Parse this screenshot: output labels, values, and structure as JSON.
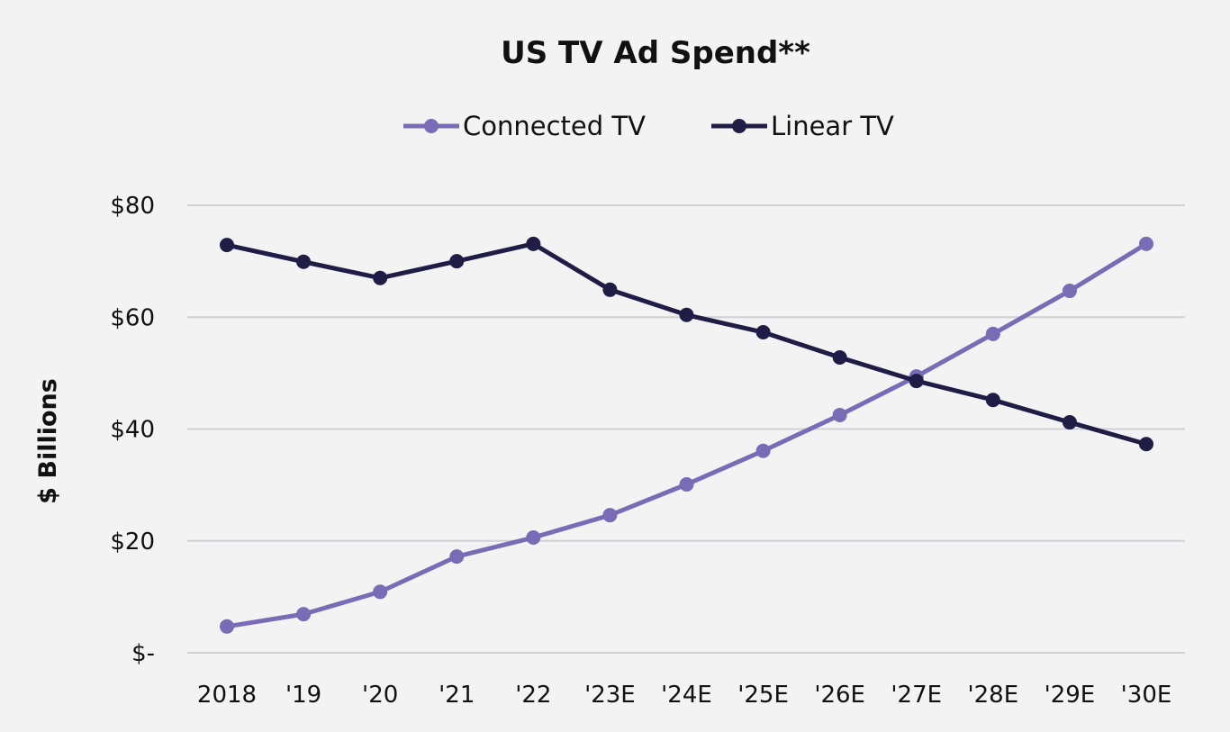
{
  "chart_data": {
    "type": "line",
    "title": "US TV Ad Spend**",
    "xlabel": "",
    "ylabel": "$ Billions",
    "categories": [
      "2018",
      "'19",
      "'20",
      "'21",
      "'22",
      "'23E",
      "'24E",
      "'25E",
      "'26E",
      "'27E",
      "'28E",
      "'29E",
      "'30E"
    ],
    "ylim": [
      0,
      80
    ],
    "yticks": [
      0,
      20,
      40,
      60,
      80
    ],
    "ytick_labels": [
      "$-",
      "$20",
      "$40",
      "$60",
      "$80"
    ],
    "grid": true,
    "legend_position": "top-center",
    "series": [
      {
        "name": "Connected TV",
        "color": "#7a6bb6",
        "values": [
          4.7,
          6.9,
          10.9,
          17.2,
          20.6,
          24.6,
          30.1,
          36.1,
          42.5,
          49.4,
          57.0,
          64.7,
          73.1
        ]
      },
      {
        "name": "Linear TV",
        "color": "#1f1d45",
        "values": [
          72.9,
          69.9,
          67.0,
          70.0,
          73.1,
          64.9,
          60.4,
          57.3,
          52.8,
          48.6,
          45.2,
          41.2,
          37.3
        ]
      }
    ]
  }
}
